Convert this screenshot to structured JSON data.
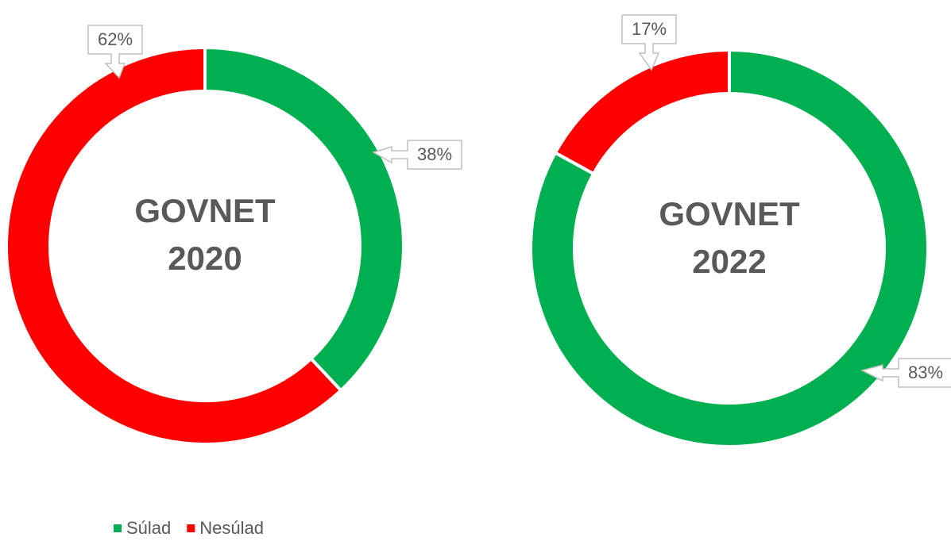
{
  "chart_data": [
    {
      "type": "doughnut",
      "title": "GOVNET 2020",
      "categories": [
        "Súlad",
        "Nesúlad"
      ],
      "values": [
        38,
        62
      ],
      "value_labels": [
        "38%",
        "62%"
      ],
      "colors": [
        "#00b050",
        "#ff0000"
      ]
    },
    {
      "type": "doughnut",
      "title": "GOVNET 2022",
      "categories": [
        "Súlad",
        "Nesúlad"
      ],
      "values": [
        83,
        17
      ],
      "value_labels": [
        "83%",
        "17%"
      ],
      "colors": [
        "#00b050",
        "#ff0000"
      ]
    }
  ]
}
